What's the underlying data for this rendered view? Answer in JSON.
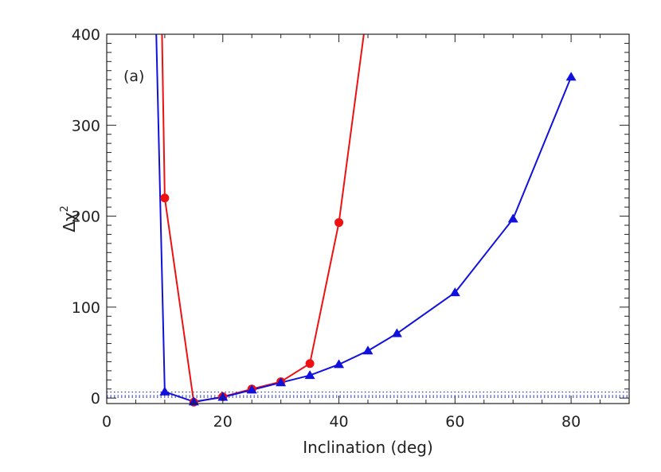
{
  "chart_data": {
    "type": "line",
    "panel_label": "(a)",
    "xlabel": "Inclination (deg)",
    "ylabel_base": "Δχ",
    "ylabel_sup": "2",
    "xlim": [
      0,
      90
    ],
    "ylim": [
      -6,
      400
    ],
    "x_ticks": [
      0,
      20,
      40,
      60,
      80
    ],
    "x_tick_labels": [
      "0",
      "20",
      "40",
      "60",
      "80"
    ],
    "y_ticks": [
      0,
      100,
      200,
      300,
      400
    ],
    "y_tick_labels": [
      "0",
      "100",
      "200",
      "300",
      "400"
    ],
    "grid": false,
    "reference_lines": [
      1,
      2.71,
      6.63
    ],
    "series": [
      {
        "color": "#ee1111",
        "marker": "circle",
        "x": [
          9.5,
          10,
          15,
          20,
          25,
          30,
          35,
          40,
          44.5
        ],
        "y": [
          410,
          220,
          -4.5,
          1.5,
          10,
          18,
          38,
          193,
          410
        ]
      },
      {
        "color": "#1111dd",
        "marker": "triangle",
        "x": [
          8.5,
          10,
          15,
          20,
          25,
          30,
          35,
          40,
          45,
          50,
          60,
          70,
          80
        ],
        "y": [
          410,
          7,
          -4,
          1,
          9,
          17,
          25,
          37,
          52,
          71,
          116,
          197,
          353
        ]
      }
    ]
  }
}
